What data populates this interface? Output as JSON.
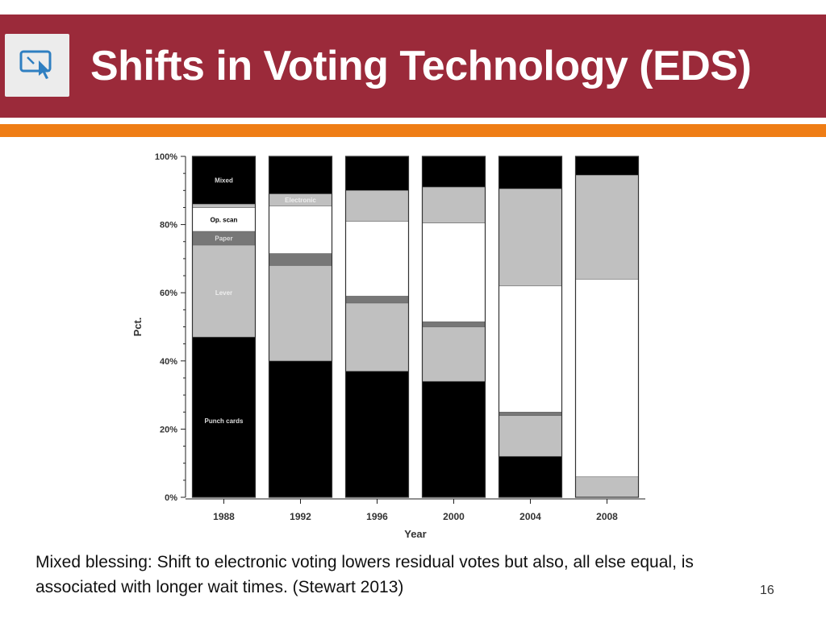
{
  "slide": {
    "title": "Shifts in Voting Technology (EDS)",
    "caption": "Mixed blessing: Shift to electronic voting lowers residual votes but also, all else equal, is associated with longer wait times. (Stewart 2013)",
    "page_number": "16",
    "colors": {
      "title_band": "#9b2a3a",
      "accent_band": "#ef7d15",
      "icon_bg": "#ececec",
      "icon": "#2f7fc1"
    }
  },
  "chart_data": {
    "type": "bar",
    "stacked": true,
    "title": "",
    "xlabel": "Year",
    "ylabel": "Pct.",
    "ylim": [
      0,
      100
    ],
    "yticks": [
      0,
      20,
      40,
      60,
      80,
      100
    ],
    "ytick_labels": [
      "0%",
      "20%",
      "40%",
      "60%",
      "80%",
      "100%"
    ],
    "categories": [
      "1988",
      "1992",
      "1996",
      "2000",
      "2004",
      "2008"
    ],
    "series": [
      {
        "name": "Punch cards",
        "color": "#000000",
        "values": [
          47,
          40,
          37,
          34,
          12,
          0
        ]
      },
      {
        "name": "Lever",
        "color": "#c0c0c0",
        "values": [
          27,
          28,
          20,
          16,
          12,
          6
        ]
      },
      {
        "name": "Paper",
        "color": "#777777",
        "values": [
          4,
          3.5,
          2,
          1.5,
          1,
          0
        ]
      },
      {
        "name": "Op. scan",
        "color": "#ffffff",
        "values": [
          7,
          14,
          22,
          29,
          37,
          58
        ]
      },
      {
        "name": "Electronic",
        "color": "#c0c0c0",
        "values": [
          1,
          3.5,
          9,
          10.5,
          28.5,
          30.5
        ]
      },
      {
        "name": "Mixed",
        "color": "#000000",
        "values": [
          14,
          11,
          10,
          9,
          9.5,
          5.5
        ]
      }
    ],
    "series_labels": [
      "Punch cards",
      "Lever",
      "Paper",
      "Op. scan",
      "Electronic",
      "Mixed"
    ]
  }
}
